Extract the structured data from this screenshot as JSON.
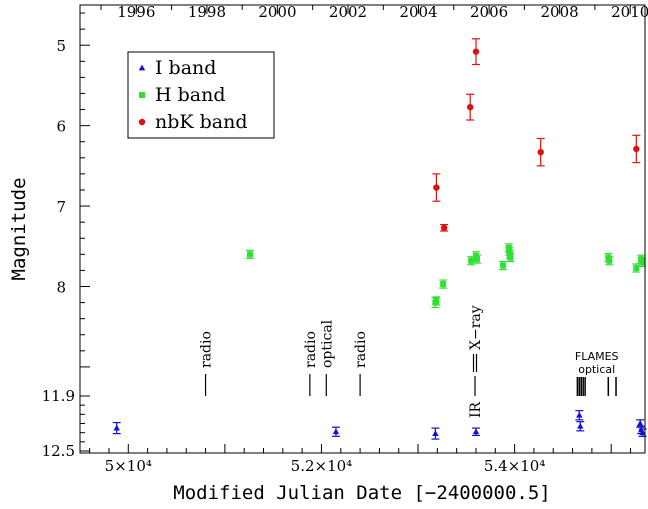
{
  "chart_data": {
    "type": "scatter",
    "xlabel": "Modified Julian Date [−2400000.5]",
    "ylabel": "Magnitude",
    "xlim": [
      49500,
      55350
    ],
    "x_ticks": [
      {
        "value": 50000,
        "label": "5×10⁴"
      },
      {
        "value": 52000,
        "label": "5.2×10⁴"
      },
      {
        "value": 54000,
        "label": "5.4×10⁴"
      }
    ],
    "top_axis": {
      "label": "year",
      "ticks": [
        {
          "value": 50083,
          "label": "1996"
        },
        {
          "value": 50814,
          "label": "1998"
        },
        {
          "value": 51544,
          "label": "2000"
        },
        {
          "value": 52275,
          "label": "2002"
        },
        {
          "value": 53005,
          "label": "2004"
        },
        {
          "value": 53736,
          "label": "2006"
        },
        {
          "value": 54466,
          "label": "2008"
        },
        {
          "value": 55197,
          "label": "2010"
        }
      ]
    },
    "panels": [
      {
        "name": "upper",
        "ylim": [
          4.5,
          9.2
        ],
        "inverted": true,
        "y_ticks": [
          "5",
          "6",
          "7",
          "8"
        ]
      },
      {
        "name": "lower",
        "ylim": [
          11.9,
          12.5
        ],
        "inverted": true,
        "y_ticks": [
          "11.9",
          "12.5"
        ]
      }
    ],
    "legend": {
      "position": "top-left",
      "entries": [
        "I band",
        "H band",
        "nbK band"
      ]
    },
    "series": [
      {
        "name": "I band",
        "color": "#1010d0",
        "marker": "triangle",
        "panel": "lower",
        "points": [
          {
            "x": 49880,
            "y": 12.25,
            "err": 0.06
          },
          {
            "x": 52150,
            "y": 12.29,
            "err": 0.05
          },
          {
            "x": 53180,
            "y": 12.31,
            "err": 0.06
          },
          {
            "x": 53600,
            "y": 12.29,
            "err": 0.04
          },
          {
            "x": 54670,
            "y": 12.11,
            "err": 0.05
          },
          {
            "x": 54680,
            "y": 12.23,
            "err": 0.05
          },
          {
            "x": 55300,
            "y": 12.2,
            "err": 0.04
          },
          {
            "x": 55310,
            "y": 12.27,
            "err": 0.04
          },
          {
            "x": 55325,
            "y": 12.3,
            "err": 0.04
          }
        ]
      },
      {
        "name": "H band",
        "color": "#30e030",
        "marker": "square",
        "panel": "upper",
        "points": [
          {
            "x": 51260,
            "y": 7.6,
            "err": 0.05
          },
          {
            "x": 53180,
            "y": 8.2,
            "err": 0.06
          },
          {
            "x": 53190,
            "y": 8.18,
            "err": 0.05
          },
          {
            "x": 53260,
            "y": 7.97,
            "err": 0.05
          },
          {
            "x": 53550,
            "y": 7.68,
            "err": 0.05
          },
          {
            "x": 53600,
            "y": 7.62,
            "err": 0.05
          },
          {
            "x": 53610,
            "y": 7.66,
            "err": 0.05
          },
          {
            "x": 53880,
            "y": 7.74,
            "err": 0.05
          },
          {
            "x": 53940,
            "y": 7.52,
            "err": 0.05
          },
          {
            "x": 53945,
            "y": 7.56,
            "err": 0.05
          },
          {
            "x": 53950,
            "y": 7.6,
            "err": 0.05
          },
          {
            "x": 53955,
            "y": 7.64,
            "err": 0.05
          },
          {
            "x": 54970,
            "y": 7.64,
            "err": 0.05
          },
          {
            "x": 54980,
            "y": 7.68,
            "err": 0.05
          },
          {
            "x": 55260,
            "y": 7.77,
            "err": 0.05
          },
          {
            "x": 55310,
            "y": 7.66,
            "err": 0.05
          },
          {
            "x": 55320,
            "y": 7.7,
            "err": 0.05
          }
        ]
      },
      {
        "name": "nbK band",
        "color": "#e01010",
        "marker": "circle",
        "panel": "upper",
        "points": [
          {
            "x": 53190,
            "y": 6.77,
            "err": 0.17
          },
          {
            "x": 53270,
            "y": 7.27,
            "err": 0.04
          },
          {
            "x": 53540,
            "y": 5.77,
            "err": 0.16
          },
          {
            "x": 53600,
            "y": 5.08,
            "err": 0.16
          },
          {
            "x": 54270,
            "y": 6.33,
            "err": 0.17
          },
          {
            "x": 55260,
            "y": 6.29,
            "err": 0.17
          }
        ]
      }
    ],
    "annotations": [
      {
        "text": "radio",
        "x": 50800
      },
      {
        "text": "radio",
        "x": 51880
      },
      {
        "text": "optical",
        "x": 52050
      },
      {
        "text": "radio",
        "x": 52400
      },
      {
        "text": "X−ray",
        "x": 53590
      },
      {
        "text": "IR",
        "x": 53590
      },
      {
        "text": "FLAMES",
        "x": 54850
      },
      {
        "text": "optical",
        "x": 54850
      }
    ],
    "flames_marker_x": [
      54650,
      54670,
      54690,
      54710,
      54730,
      54970,
      55050
    ]
  }
}
